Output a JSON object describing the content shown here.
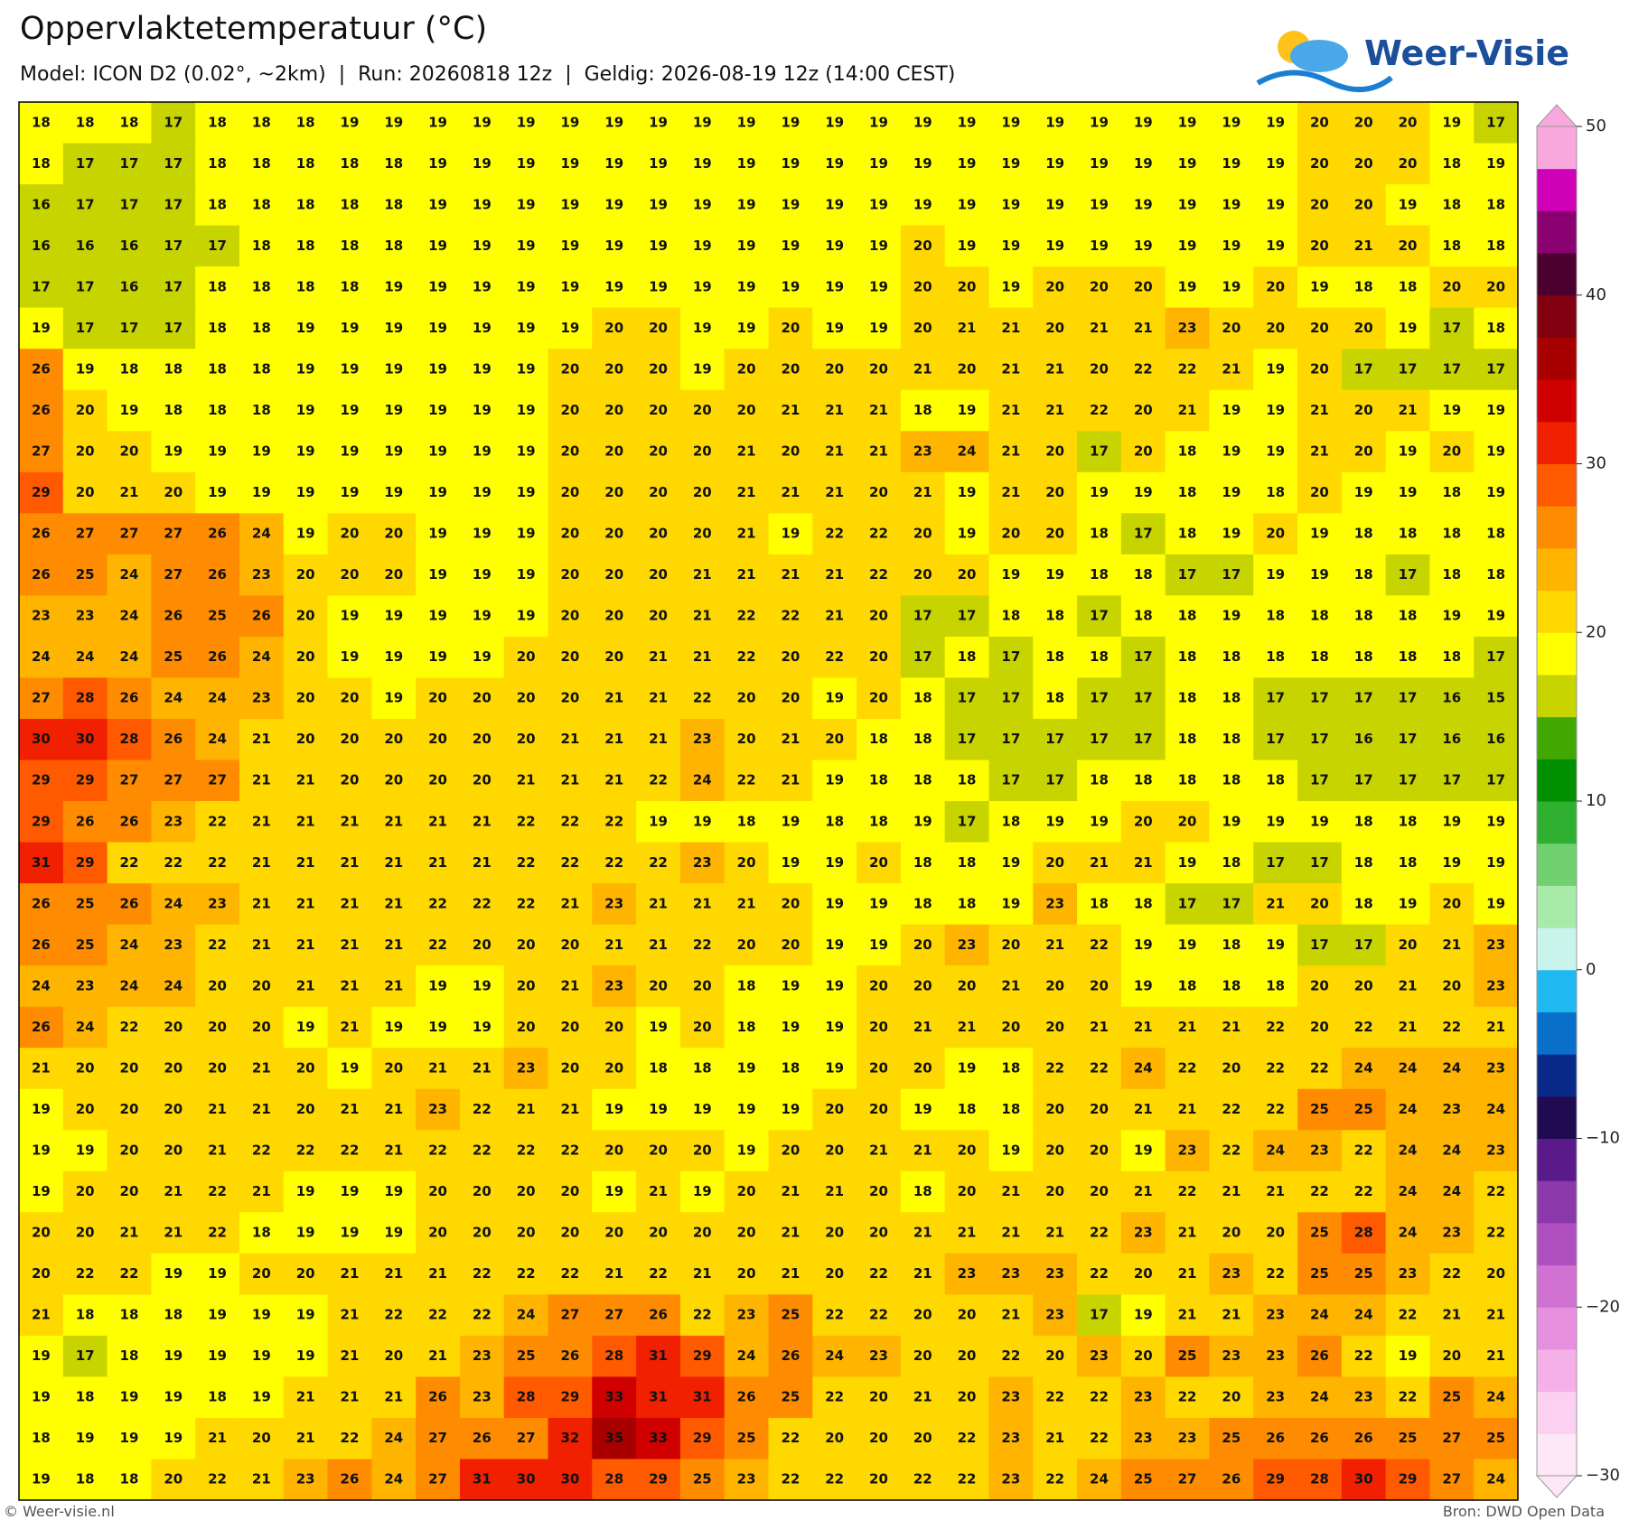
{
  "header": {
    "title": "Oppervlaktetemperatuur (°C)",
    "subtitle": "Model: ICON D2 (0.02°, ~2km)  |  Run: 20260818 12z  |  Geldig: 2026-08-19 12z (14:00 CEST)",
    "logo": "Weer-Visie"
  },
  "chart_data": {
    "type": "heatmap",
    "values": [
      [
        18,
        18,
        18,
        17,
        18,
        18,
        18,
        19,
        19,
        19,
        19,
        19,
        19,
        19,
        19,
        19,
        19,
        19,
        19,
        19,
        19,
        19,
        19,
        19,
        19,
        19,
        19,
        19,
        19,
        20,
        20,
        20,
        19,
        17
      ],
      [
        18,
        17,
        17,
        17,
        18,
        18,
        18,
        18,
        18,
        19,
        19,
        19,
        19,
        19,
        19,
        19,
        19,
        19,
        19,
        19,
        19,
        19,
        19,
        19,
        19,
        19,
        19,
        19,
        19,
        20,
        20,
        20,
        18,
        19
      ],
      [
        16,
        17,
        17,
        17,
        18,
        18,
        18,
        18,
        18,
        19,
        19,
        19,
        19,
        19,
        19,
        19,
        19,
        19,
        19,
        19,
        19,
        19,
        19,
        19,
        19,
        19,
        19,
        19,
        19,
        20,
        20,
        19,
        18,
        18
      ],
      [
        16,
        16,
        16,
        17,
        17,
        18,
        18,
        18,
        18,
        19,
        19,
        19,
        19,
        19,
        19,
        19,
        19,
        19,
        19,
        19,
        20,
        19,
        19,
        19,
        19,
        19,
        19,
        19,
        19,
        20,
        21,
        20,
        18,
        18
      ],
      [
        17,
        17,
        16,
        17,
        18,
        18,
        18,
        18,
        19,
        19,
        19,
        19,
        19,
        19,
        19,
        19,
        19,
        19,
        19,
        19,
        20,
        20,
        19,
        20,
        20,
        20,
        19,
        19,
        20,
        19,
        18,
        18,
        20,
        20
      ],
      [
        19,
        17,
        17,
        17,
        18,
        18,
        19,
        19,
        19,
        19,
        19,
        19,
        19,
        20,
        20,
        19,
        19,
        20,
        19,
        19,
        20,
        21,
        21,
        20,
        21,
        21,
        23,
        20,
        20,
        20,
        20,
        19,
        17,
        18
      ],
      [
        26,
        19,
        18,
        18,
        18,
        18,
        19,
        19,
        19,
        19,
        19,
        19,
        20,
        20,
        20,
        19,
        20,
        20,
        20,
        20,
        21,
        20,
        21,
        21,
        20,
        22,
        22,
        21,
        19,
        20,
        17,
        17,
        17,
        17
      ],
      [
        26,
        20,
        19,
        18,
        18,
        18,
        19,
        19,
        19,
        19,
        19,
        19,
        20,
        20,
        20,
        20,
        20,
        21,
        21,
        21,
        18,
        19,
        21,
        21,
        22,
        20,
        21,
        19,
        19,
        21,
        20,
        21,
        19,
        19
      ],
      [
        27,
        20,
        20,
        19,
        19,
        19,
        19,
        19,
        19,
        19,
        19,
        19,
        20,
        20,
        20,
        20,
        21,
        20,
        21,
        21,
        23,
        24,
        21,
        20,
        17,
        20,
        18,
        19,
        19,
        21,
        20,
        19,
        20,
        19
      ],
      [
        29,
        20,
        21,
        20,
        19,
        19,
        19,
        19,
        19,
        19,
        19,
        19,
        20,
        20,
        20,
        20,
        21,
        21,
        21,
        20,
        21,
        19,
        21,
        20,
        19,
        19,
        18,
        19,
        18,
        20,
        19,
        19,
        18,
        19
      ],
      [
        26,
        27,
        27,
        27,
        26,
        24,
        19,
        20,
        20,
        19,
        19,
        19,
        20,
        20,
        20,
        20,
        21,
        19,
        22,
        22,
        20,
        19,
        20,
        20,
        18,
        17,
        18,
        19,
        20,
        19,
        18,
        18,
        18,
        18
      ],
      [
        26,
        25,
        24,
        27,
        26,
        23,
        20,
        20,
        20,
        19,
        19,
        19,
        20,
        20,
        20,
        21,
        21,
        21,
        21,
        22,
        20,
        20,
        19,
        19,
        18,
        18,
        17,
        17,
        19,
        19,
        18,
        17,
        18,
        18
      ],
      [
        23,
        23,
        24,
        26,
        25,
        26,
        20,
        19,
        19,
        19,
        19,
        19,
        20,
        20,
        20,
        21,
        22,
        22,
        21,
        20,
        17,
        17,
        18,
        18,
        17,
        18,
        18,
        19,
        18,
        18,
        18,
        18,
        19,
        19
      ],
      [
        24,
        24,
        24,
        25,
        26,
        24,
        20,
        19,
        19,
        19,
        19,
        20,
        20,
        20,
        21,
        21,
        22,
        20,
        22,
        20,
        17,
        18,
        17,
        18,
        18,
        17,
        18,
        18,
        18,
        18,
        18,
        18,
        18,
        17
      ],
      [
        27,
        28,
        26,
        24,
        24,
        23,
        20,
        20,
        19,
        20,
        20,
        20,
        20,
        21,
        21,
        22,
        20,
        20,
        19,
        20,
        18,
        17,
        17,
        18,
        17,
        17,
        18,
        18,
        17,
        17,
        17,
        17,
        16,
        15
      ],
      [
        30,
        30,
        28,
        26,
        24,
        21,
        20,
        20,
        20,
        20,
        20,
        20,
        21,
        21,
        21,
        23,
        20,
        21,
        20,
        18,
        18,
        17,
        17,
        17,
        17,
        17,
        18,
        18,
        17,
        17,
        16,
        17,
        16,
        16
      ],
      [
        29,
        29,
        27,
        27,
        27,
        21,
        21,
        20,
        20,
        20,
        20,
        21,
        21,
        21,
        22,
        24,
        22,
        21,
        19,
        18,
        18,
        18,
        17,
        17,
        18,
        18,
        18,
        18,
        18,
        17,
        17,
        17,
        17,
        17
      ],
      [
        29,
        26,
        26,
        23,
        22,
        21,
        21,
        21,
        21,
        21,
        21,
        22,
        22,
        22,
        19,
        19,
        18,
        19,
        18,
        18,
        19,
        17,
        18,
        19,
        19,
        20,
        20,
        19,
        19,
        19,
        18,
        18,
        19,
        19
      ],
      [
        31,
        29,
        22,
        22,
        22,
        21,
        21,
        21,
        21,
        21,
        21,
        22,
        22,
        22,
        22,
        23,
        20,
        19,
        19,
        20,
        18,
        18,
        19,
        20,
        21,
        21,
        19,
        18,
        17,
        17,
        18,
        18,
        19,
        19
      ],
      [
        26,
        25,
        26,
        24,
        23,
        21,
        21,
        21,
        21,
        22,
        22,
        22,
        21,
        23,
        21,
        21,
        21,
        20,
        19,
        19,
        18,
        18,
        19,
        23,
        18,
        18,
        17,
        17,
        21,
        20,
        18,
        19,
        20,
        19
      ],
      [
        26,
        25,
        24,
        23,
        22,
        21,
        21,
        21,
        21,
        22,
        20,
        20,
        20,
        21,
        21,
        22,
        20,
        20,
        19,
        19,
        20,
        23,
        20,
        21,
        22,
        19,
        19,
        18,
        19,
        17,
        17,
        20,
        21,
        23
      ],
      [
        24,
        23,
        24,
        24,
        20,
        20,
        21,
        21,
        21,
        19,
        19,
        20,
        21,
        23,
        20,
        20,
        18,
        19,
        19,
        20,
        20,
        20,
        21,
        20,
        20,
        19,
        18,
        18,
        18,
        20,
        20,
        21,
        20,
        23
      ],
      [
        26,
        24,
        22,
        20,
        20,
        20,
        19,
        21,
        19,
        19,
        19,
        20,
        20,
        20,
        19,
        20,
        18,
        19,
        19,
        20,
        21,
        21,
        20,
        20,
        21,
        21,
        21,
        21,
        22,
        20,
        22,
        21,
        22,
        21
      ],
      [
        21,
        20,
        20,
        20,
        20,
        21,
        20,
        19,
        20,
        21,
        21,
        23,
        20,
        20,
        18,
        18,
        19,
        18,
        19,
        20,
        20,
        19,
        18,
        22,
        22,
        24,
        22,
        20,
        22,
        22,
        24,
        24,
        24,
        23
      ],
      [
        19,
        20,
        20,
        20,
        21,
        21,
        20,
        21,
        21,
        23,
        22,
        21,
        21,
        19,
        19,
        19,
        19,
        19,
        20,
        20,
        19,
        18,
        18,
        20,
        20,
        21,
        21,
        22,
        22,
        25,
        25,
        24,
        23,
        24
      ],
      [
        19,
        19,
        20,
        20,
        21,
        22,
        22,
        22,
        21,
        22,
        22,
        22,
        22,
        20,
        20,
        20,
        19,
        20,
        20,
        21,
        21,
        20,
        19,
        20,
        20,
        19,
        23,
        22,
        24,
        23,
        22,
        24,
        24,
        23
      ],
      [
        19,
        20,
        20,
        21,
        22,
        21,
        19,
        19,
        19,
        20,
        20,
        20,
        20,
        19,
        21,
        19,
        20,
        21,
        21,
        20,
        18,
        20,
        21,
        20,
        20,
        21,
        22,
        21,
        21,
        22,
        22,
        24,
        24,
        22
      ],
      [
        20,
        20,
        21,
        21,
        22,
        18,
        19,
        19,
        19,
        20,
        20,
        20,
        20,
        20,
        20,
        20,
        20,
        21,
        20,
        20,
        21,
        21,
        21,
        21,
        22,
        23,
        21,
        20,
        20,
        25,
        28,
        24,
        23,
        22
      ],
      [
        20,
        22,
        22,
        19,
        19,
        20,
        20,
        21,
        21,
        21,
        22,
        22,
        22,
        21,
        22,
        21,
        20,
        21,
        20,
        22,
        21,
        23,
        23,
        23,
        22,
        20,
        21,
        23,
        22,
        25,
        25,
        23,
        22,
        20
      ],
      [
        21,
        18,
        18,
        18,
        19,
        19,
        19,
        21,
        22,
        22,
        22,
        24,
        27,
        27,
        26,
        22,
        23,
        25,
        22,
        22,
        20,
        20,
        21,
        23,
        17,
        19,
        21,
        21,
        23,
        24,
        24,
        22,
        21,
        21
      ],
      [
        19,
        17,
        18,
        19,
        19,
        19,
        19,
        21,
        20,
        21,
        23,
        25,
        26,
        28,
        31,
        29,
        24,
        26,
        24,
        23,
        20,
        20,
        22,
        20,
        23,
        20,
        25,
        23,
        23,
        26,
        22,
        19,
        20,
        21
      ],
      [
        19,
        18,
        19,
        19,
        18,
        19,
        21,
        21,
        21,
        26,
        23,
        28,
        29,
        33,
        31,
        31,
        26,
        25,
        22,
        20,
        21,
        20,
        23,
        22,
        22,
        23,
        22,
        20,
        23,
        24,
        23,
        22,
        25,
        24
      ],
      [
        18,
        19,
        19,
        19,
        21,
        20,
        21,
        22,
        24,
        27,
        26,
        27,
        32,
        35,
        33,
        29,
        25,
        22,
        20,
        20,
        20,
        22,
        23,
        21,
        22,
        23,
        23,
        25,
        26,
        26,
        26,
        25,
        27,
        25
      ],
      [
        19,
        18,
        18,
        20,
        22,
        21,
        23,
        26,
        24,
        27,
        31,
        30,
        30,
        28,
        29,
        25,
        23,
        22,
        22,
        20,
        22,
        22,
        23,
        22,
        24,
        25,
        27,
        26,
        29,
        28,
        30,
        29,
        27,
        24
      ]
    ],
    "colorbar": {
      "levels": [
        -30,
        -27.5,
        -25,
        -22.5,
        -20,
        -17.5,
        -15,
        -12.5,
        -10,
        -7.5,
        -5,
        -2.5,
        0,
        2.5,
        5,
        7.5,
        10,
        12.5,
        15,
        17.5,
        20,
        22.5,
        25,
        27.5,
        30,
        32.5,
        35,
        37.5,
        40,
        42.5,
        45,
        47.5,
        50
      ],
      "colors": [
        "#fde6f6",
        "#fbd0f0",
        "#f5b0e8",
        "#e890e0",
        "#d070d0",
        "#b050c0",
        "#8a38aa",
        "#5a1a8a",
        "#200a50",
        "#0a2a8a",
        "#0870c8",
        "#20b8f0",
        "#c8f4ec",
        "#a8eaa8",
        "#70d070",
        "#30b030",
        "#009000",
        "#40a800",
        "#c8d400",
        "#ffff00",
        "#ffd800",
        "#ffb400",
        "#ff8c00",
        "#ff5a00",
        "#f02000",
        "#d00000",
        "#a80000",
        "#800010",
        "#4c0030",
        "#8a0070",
        "#d000b8",
        "#f8a8dc"
      ],
      "ticks": [
        {
          "value": -30,
          "label": "−30"
        },
        {
          "value": -20,
          "label": "−20"
        },
        {
          "value": -10,
          "label": "−10"
        },
        0,
        10,
        20,
        30,
        40,
        50
      ]
    }
  },
  "footer": {
    "left": "© Weer-visie.nl",
    "right": "Bron: DWD Open Data"
  }
}
